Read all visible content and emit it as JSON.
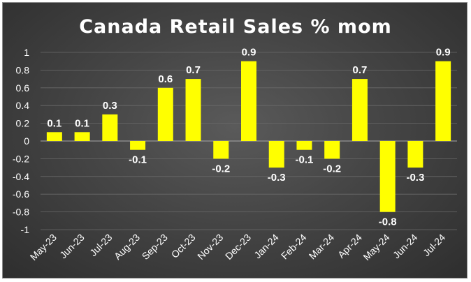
{
  "chart_data": {
    "type": "bar",
    "title": "Canada Retail Sales % mom",
    "categories": [
      "May-23",
      "Jun-23",
      "Jul-23",
      "Aug-23",
      "Sep-23",
      "Oct-23",
      "Nov-23",
      "Dec-23",
      "Jan-24",
      "Feb-24",
      "Mar-24",
      "Apr-24",
      "May-24",
      "Jun-24",
      "Jul-24"
    ],
    "values": [
      0.1,
      0.1,
      0.3,
      -0.1,
      0.6,
      0.7,
      -0.2,
      0.9,
      -0.3,
      -0.1,
      -0.2,
      0.7,
      -0.8,
      -0.3,
      0.9
    ],
    "ylim": [
      -1,
      1
    ],
    "yticks": [
      1,
      0.8,
      0.6,
      0.4,
      0.2,
      0,
      -0.2,
      -0.4,
      -0.6,
      -0.8,
      -1
    ],
    "ytick_labels": [
      "1",
      "0.8",
      "0.6",
      "0.4",
      "0.2",
      "0",
      "-0.2",
      "-0.4",
      "-0.6",
      "-0.8",
      "-1"
    ],
    "xlabel": "",
    "ylabel": "",
    "grid": true,
    "bar_color": "#ffff00",
    "data_label_color": "#ffffff"
  }
}
